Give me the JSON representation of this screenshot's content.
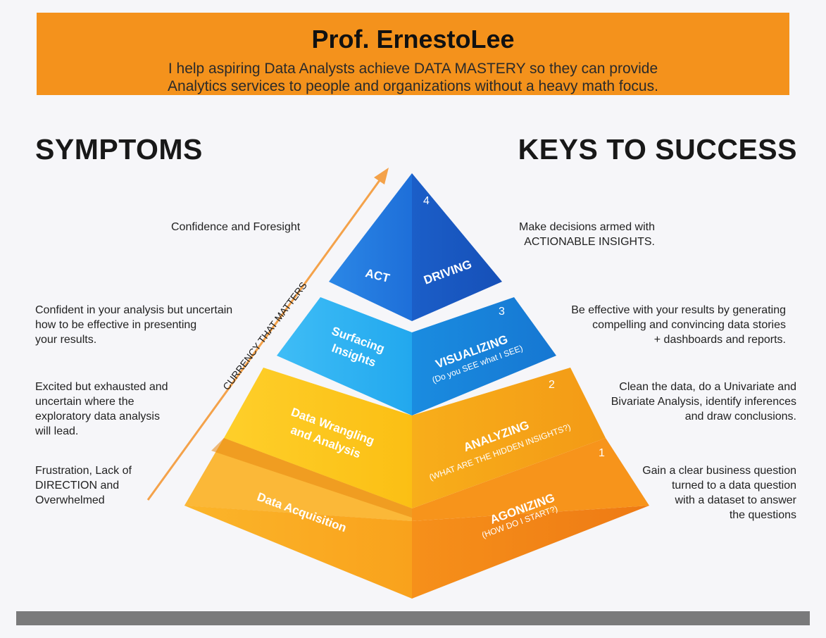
{
  "banner": {
    "name": "Prof. ErnestoLee",
    "tagline_1": "I help aspiring Data Analysts achieve DATA MASTERY so they can provide",
    "tagline_2": "Analytics services to people and organizations without a heavy math focus."
  },
  "headings": {
    "left": "SYMPTOMS",
    "right": "KEYS TO SUCCESS"
  },
  "arrow_label": "CURRENCY THAT MATTERS",
  "symptoms": {
    "level4": [
      "Confidence and Foresight"
    ],
    "level3": [
      "Confident in your analysis but uncertain",
      "how to be effective in presenting",
      "your results."
    ],
    "level2": [
      "Excited but exhausted and",
      "uncertain where the",
      "exploratory data analysis",
      "will lead."
    ],
    "level1": [
      "Frustration, Lack of",
      "DIRECTION and",
      "Overwhelmed"
    ]
  },
  "keys": {
    "level4": [
      "Make decisions armed with",
      "ACTIONABLE INSIGHTS."
    ],
    "level3": [
      "Be effective with your results by generating",
      "compelling and convincing data stories",
      "+ dashboards and reports."
    ],
    "level2": [
      "Clean the data, do a Univariate and",
      "Bivariate Analysis, identify inferences",
      "and draw conclusions."
    ],
    "level1": [
      "Gain a clear business question",
      "turned to a data question",
      "with a dataset to answer",
      "the questions"
    ]
  },
  "pyramid": {
    "tier4": {
      "number": "4",
      "left": "ACT",
      "right": "DRIVING"
    },
    "tier3": {
      "number": "3",
      "left_1": "Surfacing",
      "left_2": "Insights",
      "right": "VISUALIZING",
      "right_sub": "(Do you SEE what I SEE)"
    },
    "tier2": {
      "number": "2",
      "left_1": "Data Wrangling",
      "left_2": "and Analysis",
      "right": "ANALYZING",
      "right_sub": "(WHAT ARE THE HIDDEN INSIGHTS?)"
    },
    "tier1": {
      "number": "1",
      "left": "Data Acquisition",
      "right": "AGONIZING",
      "right_sub": "(HOW DO I START?)"
    }
  },
  "colors": {
    "banner": "#f4921c",
    "tier4": "#1f6fd6",
    "tier3": "#28a7ee",
    "tier2": "#fbc10e",
    "tier1": "#f9a51b",
    "arrow": "#f4a24a",
    "bar": "#7a7a7b"
  }
}
